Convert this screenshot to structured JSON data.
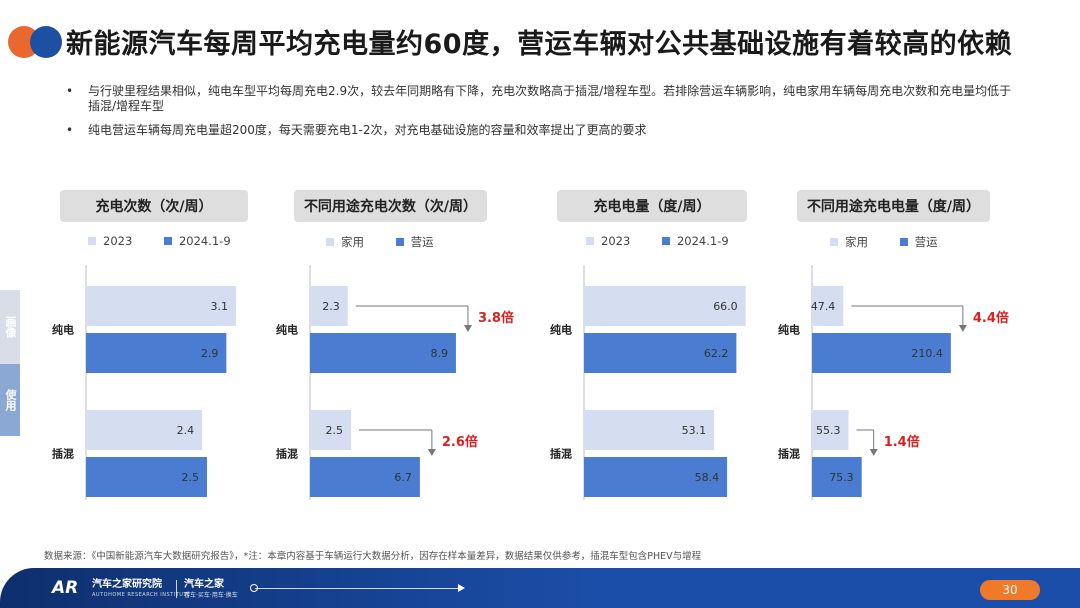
{
  "title": "新能源汽车每周平均充电量约60度，营运车辆对公共基础设施有着较高的依赖",
  "bullets": [
    "与行驶里程结果相似，纯电车型平均每周充电2.9次，较去年同期略有下降，充电次数略高于插混/增程车型。若排除营运车辆影响，纯电家用车辆每周充电次数和充电量均低于插混/增程车型",
    "纯电营运车辆每周充电量超200度，每天需要充电1-2次，对充电基础设施的容量和效率提出了更高的要求"
  ],
  "side_tabs": {
    "top": "画像",
    "bottom": "使用"
  },
  "chart_data": [
    {
      "type": "bar",
      "orientation": "horizontal",
      "title": "充电次数（次/周）",
      "categories": [
        "纯电",
        "插混"
      ],
      "series": [
        {
          "name": "2023",
          "values": [
            3.1,
            2.4
          ],
          "color": "#d4def0"
        },
        {
          "name": "2024.1-9",
          "values": [
            2.9,
            2.5
          ],
          "color": "#4a7dd1"
        }
      ]
    },
    {
      "type": "bar",
      "orientation": "horizontal",
      "title": "不同用途充电次数（次/周）",
      "categories": [
        "纯电",
        "插混"
      ],
      "series": [
        {
          "name": "家用",
          "values": [
            2.3,
            2.5
          ],
          "color": "#d4def0"
        },
        {
          "name": "营运",
          "values": [
            8.9,
            6.7
          ],
          "color": "#4a7dd1"
        }
      ],
      "annotations": [
        "3.8倍",
        "2.6倍"
      ]
    },
    {
      "type": "bar",
      "orientation": "horizontal",
      "title": "充电电量（度/周）",
      "categories": [
        "纯电",
        "插混"
      ],
      "series": [
        {
          "name": "2023",
          "values": [
            66.0,
            53.1
          ],
          "color": "#d4def0"
        },
        {
          "name": "2024.1-9",
          "values": [
            62.2,
            58.4
          ],
          "color": "#4a7dd1"
        }
      ]
    },
    {
      "type": "bar",
      "orientation": "horizontal",
      "title": "不同用途充电电量（度/周）",
      "categories": [
        "纯电",
        "插混"
      ],
      "series": [
        {
          "name": "家用",
          "values": [
            47.4,
            55.3
          ],
          "color": "#d4def0"
        },
        {
          "name": "营运",
          "values": [
            210.4,
            75.3
          ],
          "color": "#4a7dd1"
        }
      ],
      "annotations": [
        "4.4倍",
        "1.4倍"
      ]
    }
  ],
  "source": "数据来源：《中国新能源汽车大数据研究报告》，*注：本章内容基于车辆运行大数据分析，因存在样本量差异，数据结果仅供参考，插混车型包含PHEV与增程",
  "footer": {
    "logo": "AR",
    "brand": "汽车之家研究院",
    "brand_sub": "AUTOHOME RESEARCH INSTITUTE",
    "brand2": "汽车之家",
    "brand2_sub": "看车·买车·用车·换车",
    "page": "30"
  }
}
